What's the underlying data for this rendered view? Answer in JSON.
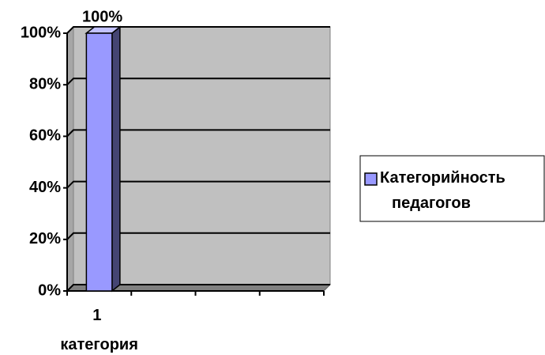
{
  "chart_data": {
    "type": "bar3d",
    "categories": [
      "1 категория",
      null,
      null,
      null
    ],
    "series": [
      {
        "name": "Категорийность педагогов",
        "color": "#9999ff",
        "values": [
          100,
          null,
          null,
          null
        ],
        "value_labels": [
          "100%",
          null,
          null,
          null
        ]
      }
    ],
    "ylim": [
      0,
      100
    ],
    "yticks": [
      {
        "value": 0,
        "label": "0%"
      },
      {
        "value": 20,
        "label": "20%"
      },
      {
        "value": 40,
        "label": "40%"
      },
      {
        "value": 60,
        "label": "60%"
      },
      {
        "value": 80,
        "label": "80%"
      },
      {
        "value": 100,
        "label": "100%"
      }
    ],
    "grid": true,
    "legend": "right"
  }
}
